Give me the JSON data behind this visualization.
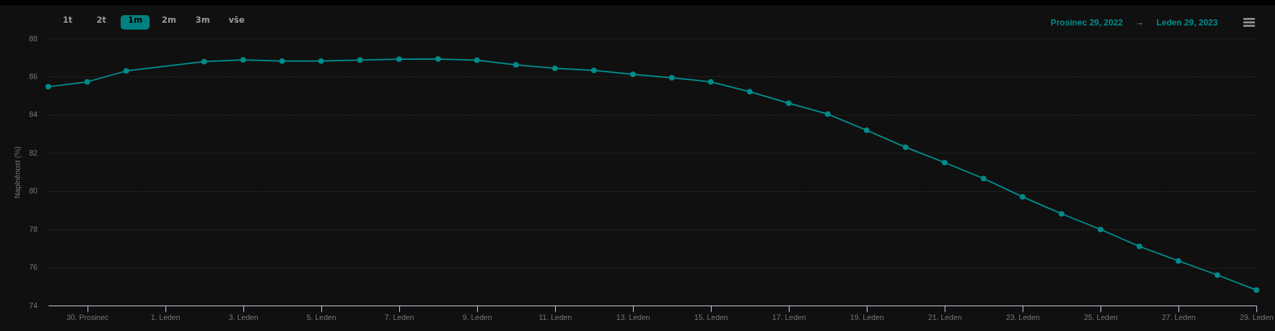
{
  "chart_data": {
    "type": "line",
    "ylabel": "Naplněnost (%)",
    "annotations": [
      "1t",
      "2t",
      "1m",
      "2m",
      "3m",
      "vše",
      "Prosinec 29, 2022",
      "→",
      "Leden 29, 2023"
    ],
    "x": [
      "2022-12-29",
      "2022-12-30",
      "2022-12-31",
      "2023-01-02",
      "2023-01-03",
      "2023-01-04",
      "2023-01-05",
      "2023-01-06",
      "2023-01-07",
      "2023-01-08",
      "2023-01-09",
      "2023-01-10",
      "2023-01-11",
      "2023-01-12",
      "2023-01-13",
      "2023-01-14",
      "2023-01-15",
      "2023-01-16",
      "2023-01-17",
      "2023-01-18",
      "2023-01-19",
      "2023-01-20",
      "2023-01-21",
      "2023-01-22",
      "2023-01-23",
      "2023-01-24",
      "2023-01-25",
      "2023-01-26",
      "2023-01-27",
      "2023-01-28",
      "2023-01-29"
    ],
    "series": [
      {
        "color": "#008b8b",
        "values": [
          85.47,
          85.73,
          86.3,
          86.79,
          86.88,
          86.82,
          86.82,
          86.87,
          86.92,
          86.93,
          86.86,
          86.62,
          86.44,
          86.33,
          86.12,
          85.94,
          85.73,
          85.21,
          84.61,
          84.04,
          83.19,
          82.3,
          81.5,
          80.66,
          79.7,
          78.81,
          77.99,
          77.1,
          76.34,
          75.6,
          74.81
        ]
      }
    ],
    "xlim": [
      "2022-12-29",
      "2023-01-29"
    ],
    "xticks": [
      {
        "value": "2022-12-30",
        "label": "30. Prosinec"
      },
      {
        "value": "2023-01-01",
        "label": "1. Leden"
      },
      {
        "value": "2023-01-03",
        "label": "3. Leden"
      },
      {
        "value": "2023-01-05",
        "label": "5. Leden"
      },
      {
        "value": "2023-01-07",
        "label": "7. Leden"
      },
      {
        "value": "2023-01-09",
        "label": "9. Leden"
      },
      {
        "value": "2023-01-11",
        "label": "11. Leden"
      },
      {
        "value": "2023-01-13",
        "label": "13. Leden"
      },
      {
        "value": "2023-01-15",
        "label": "15. Leden"
      },
      {
        "value": "2023-01-17",
        "label": "17. Leden"
      },
      {
        "value": "2023-01-19",
        "label": "19. Leden"
      },
      {
        "value": "2023-01-21",
        "label": "21. Leden"
      },
      {
        "value": "2023-01-23",
        "label": "23. Leden"
      },
      {
        "value": "2023-01-25",
        "label": "25. Leden"
      },
      {
        "value": "2023-01-27",
        "label": "27. Leden"
      },
      {
        "value": "2023-01-29",
        "label": "29. Leden"
      }
    ],
    "ylim": [
      74,
      88
    ],
    "yticks": [
      74,
      76,
      78,
      80,
      82,
      84,
      86,
      88
    ],
    "grid": "y",
    "marker": "circle"
  }
}
